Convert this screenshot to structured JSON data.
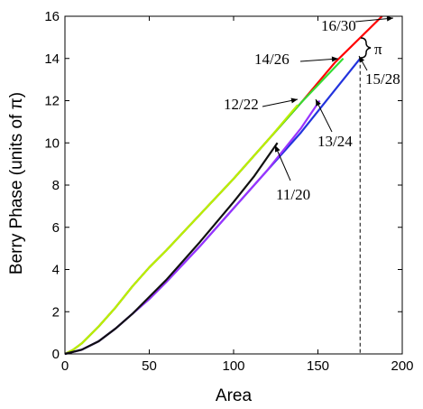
{
  "chart_data": {
    "type": "line",
    "xlabel": "Area",
    "ylabel": "Berry Phase (units of π)",
    "xlim": [
      0,
      200
    ],
    "ylim": [
      0,
      16
    ],
    "xticks": [
      0,
      50,
      100,
      150,
      200
    ],
    "yticks": [
      0,
      2,
      4,
      6,
      8,
      10,
      12,
      14,
      16
    ],
    "grid": false,
    "series": [
      {
        "name": "16/30",
        "color": "#ff0000",
        "x": [
          0,
          5,
          10,
          20,
          30,
          40,
          50,
          60,
          80,
          100,
          120,
          140,
          160,
          188
        ],
        "y": [
          0,
          0.2,
          0.5,
          1.3,
          2.2,
          3.2,
          4.1,
          4.9,
          6.6,
          8.3,
          10.1,
          11.9,
          13.8,
          16.0
        ]
      },
      {
        "name": "14/26",
        "color": "#33dd33",
        "x": [
          0,
          5,
          10,
          20,
          30,
          40,
          50,
          60,
          80,
          100,
          120,
          140,
          165
        ],
        "y": [
          0,
          0.2,
          0.5,
          1.3,
          2.2,
          3.2,
          4.1,
          4.9,
          6.6,
          8.3,
          10.1,
          11.9,
          14.0
        ]
      },
      {
        "name": "12/22",
        "color": "#bbee00",
        "x": [
          0,
          5,
          10,
          20,
          30,
          40,
          50,
          60,
          80,
          100,
          120,
          138
        ],
        "y": [
          0,
          0.2,
          0.5,
          1.3,
          2.2,
          3.2,
          4.1,
          4.9,
          6.6,
          8.3,
          10.1,
          11.8
        ]
      },
      {
        "name": "15/28",
        "color": "#2233dd",
        "x": [
          0,
          10,
          20,
          30,
          40,
          50,
          60,
          80,
          100,
          120,
          140,
          160,
          175
        ],
        "y": [
          0,
          0.2,
          0.6,
          1.2,
          1.9,
          2.6,
          3.4,
          5.1,
          6.9,
          8.7,
          10.5,
          12.5,
          14.0
        ]
      },
      {
        "name": "13/24",
        "color": "#9933ff",
        "x": [
          0,
          10,
          20,
          30,
          40,
          50,
          60,
          80,
          100,
          120,
          140,
          151
        ],
        "y": [
          0,
          0.2,
          0.6,
          1.2,
          1.9,
          2.6,
          3.4,
          5.1,
          6.9,
          8.7,
          10.7,
          12.0
        ]
      },
      {
        "name": "11/20",
        "color": "#111111",
        "x": [
          0,
          10,
          20,
          30,
          40,
          50,
          60,
          80,
          100,
          112,
          126
        ],
        "y": [
          0,
          0.2,
          0.6,
          1.2,
          1.9,
          2.7,
          3.5,
          5.3,
          7.2,
          8.4,
          10.0
        ]
      }
    ],
    "annotations": [
      {
        "text": "16/30",
        "color": "#000000"
      },
      {
        "text": "14/26",
        "color": "#000000"
      },
      {
        "text": "12/22",
        "color": "#000000"
      },
      {
        "text": "15/28",
        "color": "#000000"
      },
      {
        "text": "13/24",
        "color": "#000000"
      },
      {
        "text": "11/20",
        "color": "#000000"
      },
      {
        "text": "π",
        "color": "#ff2200"
      }
    ],
    "reference_line": {
      "x": 175,
      "style": "dashed"
    }
  }
}
